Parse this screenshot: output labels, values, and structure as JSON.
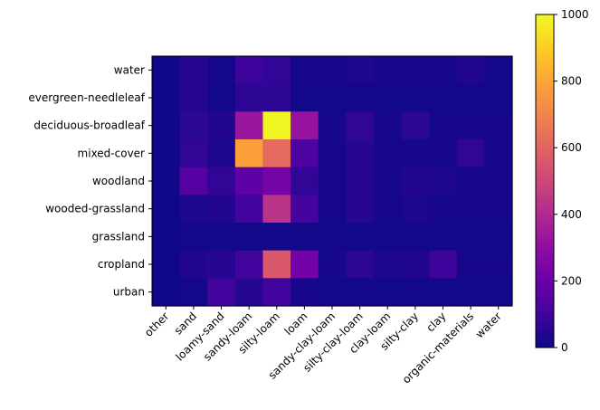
{
  "chart_data": {
    "type": "heatmap",
    "title": "",
    "xlabel": "",
    "ylabel": "",
    "x_categories": [
      "other",
      "sand",
      "loamy-sand",
      "sandy-loam",
      "silty-loam",
      "loam",
      "sandy-clay-loam",
      "silty-clay-loam",
      "clay-loam",
      "silty-clay",
      "clay",
      "organic-materials",
      "water"
    ],
    "y_categories": [
      "water",
      "evergreen-needleleaf",
      "deciduous-broadleaf",
      "mixed-cover",
      "woodland",
      "wooded-grassland",
      "grassland",
      "cropland",
      "urban"
    ],
    "values": [
      [
        5,
        45,
        15,
        90,
        70,
        20,
        20,
        30,
        20,
        20,
        20,
        40,
        15
      ],
      [
        5,
        45,
        10,
        60,
        60,
        10,
        10,
        15,
        10,
        10,
        10,
        10,
        10
      ],
      [
        5,
        60,
        40,
        330,
        990,
        320,
        20,
        70,
        20,
        60,
        20,
        20,
        20
      ],
      [
        5,
        70,
        30,
        780,
        620,
        130,
        20,
        50,
        20,
        20,
        20,
        70,
        20
      ],
      [
        5,
        150,
        70,
        170,
        230,
        70,
        20,
        50,
        20,
        40,
        30,
        20,
        20
      ],
      [
        5,
        30,
        40,
        100,
        430,
        110,
        20,
        50,
        20,
        30,
        20,
        20,
        20
      ],
      [
        5,
        10,
        10,
        10,
        10,
        10,
        10,
        10,
        10,
        10,
        10,
        10,
        10
      ],
      [
        5,
        40,
        50,
        100,
        560,
        220,
        20,
        60,
        30,
        40,
        90,
        20,
        20
      ],
      [
        5,
        15,
        100,
        50,
        100,
        20,
        10,
        10,
        10,
        10,
        10,
        10,
        10
      ]
    ],
    "colormap": "plasma",
    "colorbar": {
      "min": 0,
      "max": 1000,
      "ticks": [
        0,
        200,
        400,
        600,
        800,
        1000
      ],
      "tick_labels": [
        "0",
        "200",
        "400",
        "600",
        "800",
        "1000"
      ]
    }
  }
}
